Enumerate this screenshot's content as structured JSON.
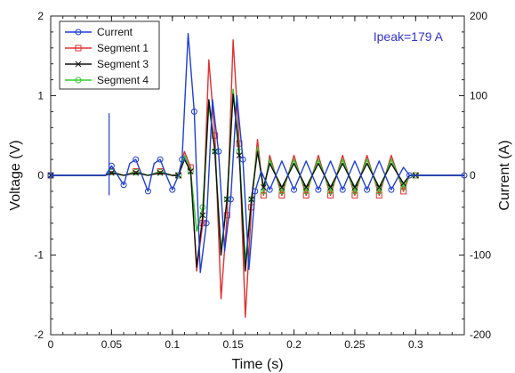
{
  "chart_data": {
    "type": "line",
    "xlabel": "Time (s)",
    "ylabel": "Voltage (V)",
    "y2label": "Current (A)",
    "xlim": [
      0,
      0.34
    ],
    "ylim": [
      -2,
      2
    ],
    "y2lim": [
      -200,
      200
    ],
    "x_ticks": [
      "0",
      "0.05",
      "0.1",
      "0.15",
      "0.2",
      "0.25",
      "0.3"
    ],
    "y_ticks": [
      "-2",
      "-1",
      "0",
      "1",
      "2"
    ],
    "y2_ticks": [
      "-200",
      "-100",
      "0",
      "100",
      "200"
    ],
    "annotation": "Ipeak=179 A",
    "annotation_color": "#3333cc",
    "legend_position": "top-left",
    "series": [
      {
        "name": "Current",
        "color": "#1f3fd6",
        "marker": "circle",
        "x": [
          0.0,
          0.045,
          0.05,
          0.055,
          0.06,
          0.065,
          0.07,
          0.075,
          0.08,
          0.085,
          0.09,
          0.095,
          0.1,
          0.105,
          0.108,
          0.113,
          0.118,
          0.123,
          0.128,
          0.133,
          0.138,
          0.143,
          0.148,
          0.153,
          0.158,
          0.163,
          0.168,
          0.173,
          0.18,
          0.19,
          0.2,
          0.21,
          0.22,
          0.23,
          0.24,
          0.25,
          0.26,
          0.27,
          0.28,
          0.29,
          0.295,
          0.3,
          0.34
        ],
        "values": [
          0.0,
          0.0,
          0.12,
          0.0,
          -0.12,
          0.15,
          0.2,
          0.0,
          -0.2,
          0.15,
          0.2,
          0.0,
          -0.18,
          0.0,
          0.2,
          1.78,
          0.8,
          -1.22,
          -0.6,
          0.95,
          0.3,
          -0.95,
          -0.3,
          1.0,
          0.2,
          -1.18,
          -0.2,
          0.05,
          -0.18,
          0.18,
          -0.18,
          0.18,
          -0.18,
          0.18,
          -0.18,
          0.18,
          -0.18,
          0.18,
          -0.18,
          0.1,
          0.0,
          0.0,
          0.0
        ]
      },
      {
        "name": "Segment 1",
        "color": "#e03030",
        "marker": "square",
        "x": [
          0.0,
          0.045,
          0.05,
          0.06,
          0.07,
          0.08,
          0.09,
          0.1,
          0.105,
          0.11,
          0.115,
          0.12,
          0.125,
          0.13,
          0.135,
          0.14,
          0.145,
          0.15,
          0.155,
          0.16,
          0.165,
          0.17,
          0.175,
          0.18,
          0.19,
          0.2,
          0.21,
          0.22,
          0.23,
          0.24,
          0.25,
          0.26,
          0.27,
          0.28,
          0.29,
          0.295,
          0.3,
          0.34
        ],
        "values": [
          0.0,
          0.0,
          0.05,
          0.0,
          0.05,
          0.0,
          0.05,
          0.0,
          0.0,
          0.3,
          0.1,
          -1.2,
          -0.6,
          1.45,
          0.5,
          -1.55,
          -0.5,
          1.7,
          0.4,
          -1.78,
          -0.4,
          0.45,
          -0.25,
          0.25,
          -0.25,
          0.25,
          -0.25,
          0.25,
          -0.25,
          0.25,
          -0.25,
          0.25,
          -0.25,
          0.25,
          -0.2,
          0.0,
          0.0,
          0.0
        ]
      },
      {
        "name": "Segment 3",
        "color": "#111111",
        "marker": "x",
        "x": [
          0.0,
          0.045,
          0.05,
          0.06,
          0.07,
          0.08,
          0.09,
          0.1,
          0.105,
          0.11,
          0.115,
          0.12,
          0.125,
          0.13,
          0.135,
          0.14,
          0.145,
          0.15,
          0.155,
          0.16,
          0.165,
          0.17,
          0.175,
          0.18,
          0.19,
          0.2,
          0.21,
          0.22,
          0.23,
          0.24,
          0.25,
          0.26,
          0.27,
          0.28,
          0.29,
          0.295,
          0.3,
          0.34
        ],
        "values": [
          0.0,
          0.0,
          0.03,
          0.0,
          0.03,
          0.0,
          0.03,
          0.0,
          0.0,
          0.2,
          0.05,
          -1.15,
          -0.5,
          0.95,
          0.3,
          -1.0,
          -0.3,
          1.02,
          0.25,
          -1.2,
          -0.3,
          0.3,
          -0.15,
          0.15,
          -0.15,
          0.15,
          -0.15,
          0.15,
          -0.15,
          0.15,
          -0.15,
          0.15,
          -0.15,
          0.15,
          -0.1,
          0.0,
          0.0,
          0.0
        ]
      },
      {
        "name": "Segment 4",
        "color": "#33cc33",
        "marker": "circle",
        "x": [
          0.0,
          0.045,
          0.05,
          0.06,
          0.07,
          0.08,
          0.09,
          0.1,
          0.105,
          0.11,
          0.115,
          0.12,
          0.125,
          0.13,
          0.135,
          0.14,
          0.145,
          0.15,
          0.155,
          0.16,
          0.165,
          0.17,
          0.175,
          0.18,
          0.19,
          0.2,
          0.21,
          0.22,
          0.23,
          0.24,
          0.25,
          0.26,
          0.27,
          0.28,
          0.29,
          0.295,
          0.3,
          0.34
        ],
        "values": [
          0.0,
          0.0,
          0.04,
          0.0,
          0.04,
          0.0,
          0.04,
          0.0,
          0.0,
          0.25,
          0.05,
          -0.7,
          -0.4,
          0.9,
          0.3,
          -0.95,
          -0.3,
          1.08,
          0.3,
          -1.1,
          -0.3,
          0.35,
          -0.2,
          0.2,
          -0.2,
          0.2,
          -0.2,
          0.2,
          -0.2,
          0.2,
          -0.2,
          0.2,
          -0.2,
          0.2,
          -0.15,
          0.0,
          0.0,
          0.0
        ]
      }
    ]
  }
}
